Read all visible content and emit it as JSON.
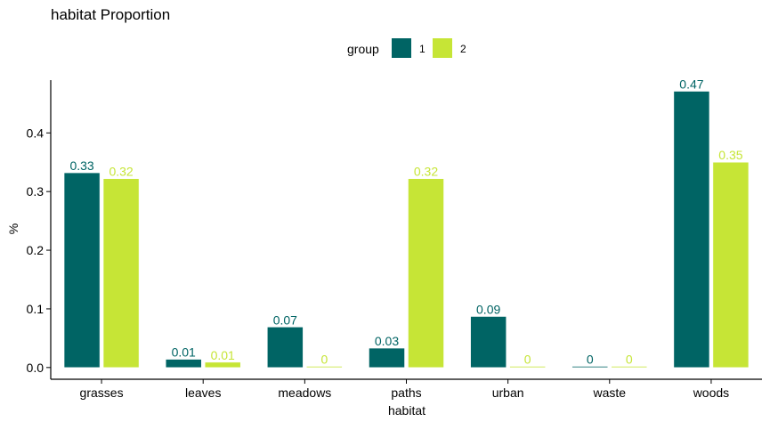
{
  "chart_data": {
    "type": "bar",
    "title": "habitat Proportion",
    "xlabel": "habitat",
    "ylabel": "%",
    "categories": [
      "grasses",
      "leaves",
      "meadows",
      "paths",
      "urban",
      "waste",
      "woods"
    ],
    "series": [
      {
        "name": "1",
        "color": "#006464",
        "values": [
          0.332,
          0.014,
          0.069,
          0.033,
          0.087,
          0.002,
          0.471
        ],
        "labels": [
          "0.33",
          "0.01",
          "0.07",
          "0.03",
          "0.09",
          "0",
          "0.47"
        ]
      },
      {
        "name": "2",
        "color": "#c6e536",
        "values": [
          0.322,
          0.009,
          0.002,
          0.322,
          0.002,
          0.002,
          0.35
        ],
        "labels": [
          "0.32",
          "0.01",
          "0",
          "0.32",
          "0",
          "0",
          "0.35"
        ]
      }
    ],
    "legend": {
      "title": "group",
      "position": "top"
    },
    "yticks": [
      "0.0",
      "0.1",
      "0.2",
      "0.3",
      "0.4"
    ],
    "ylim": [
      -0.02,
      0.49
    ],
    "grid": false
  }
}
